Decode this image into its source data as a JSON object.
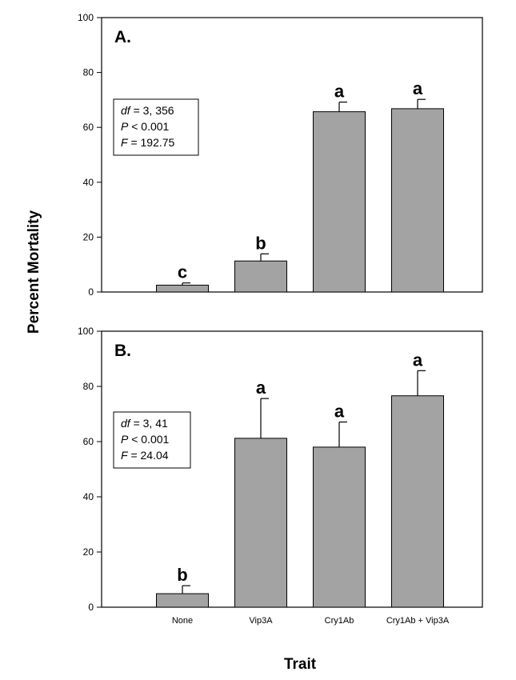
{
  "colors": {
    "bar": "#a3a3a3",
    "bar_edge": "#000000",
    "axis": "#000000",
    "background": "#ffffff"
  },
  "chart_data": [
    {
      "type": "bar",
      "panel_label": "A.",
      "categories": [
        "None",
        "Vip3A",
        "Cry1Ab",
        "Cry1Ab + Vip3A"
      ],
      "values": [
        2.5,
        11.3,
        65.7,
        66.8
      ],
      "error_upper": [
        0.8,
        2.6,
        3.5,
        3.4
      ],
      "significance": [
        "c",
        "b",
        "a",
        "a"
      ],
      "stats": {
        "df_label": "df",
        "df_value": "=  3, 356",
        "p_label": "P",
        "p_value": "< 0.001",
        "f_label": "F",
        "f_value": "= 192.75"
      },
      "ylim": [
        0,
        100
      ],
      "yticks": [
        0,
        20,
        40,
        60,
        80,
        100
      ],
      "show_x_tick_labels": false
    },
    {
      "type": "bar",
      "panel_label": "B.",
      "categories": [
        "None",
        "Vip3A",
        "Cry1Ab",
        "Cry1Ab + Vip3A"
      ],
      "values": [
        4.9,
        61.2,
        58.0,
        76.6
      ],
      "error_upper": [
        2.9,
        14.4,
        9.1,
        9.1
      ],
      "significance": [
        "b",
        "a",
        "a",
        "a"
      ],
      "stats": {
        "df_label": "df",
        "df_value": "=  3, 41",
        "p_label": "P",
        "p_value": "< 0.001",
        "f_label": "F",
        "f_value": "= 24.04"
      },
      "ylim": [
        0,
        100
      ],
      "yticks": [
        0,
        20,
        40,
        60,
        80,
        100
      ],
      "show_x_tick_labels": true
    }
  ],
  "ylabel": "Percent Mortality",
  "xlabel": "Trait"
}
